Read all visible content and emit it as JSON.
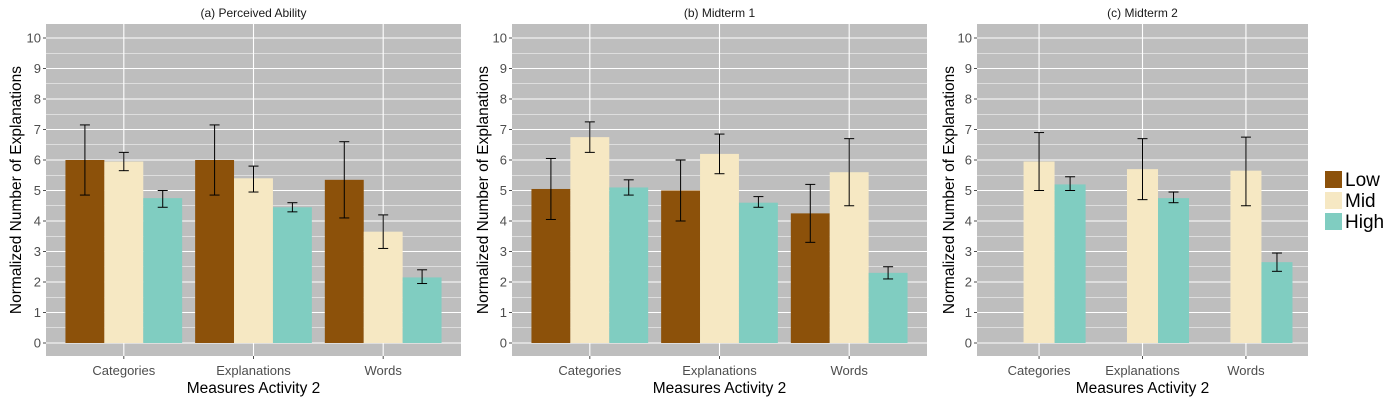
{
  "colors": {
    "Low": "#8c510a",
    "Mid": "#f6e8c3",
    "High": "#80cdc1",
    "panel_bg": "#bebebe",
    "grid": "#ffffff",
    "errorbar": "#000000"
  },
  "legend": {
    "position": "right",
    "items": [
      "Low",
      "Mid",
      "High"
    ]
  },
  "chart_data": [
    {
      "type": "bar",
      "title": "(a) Perceived Ability",
      "xlabel": "Measures Activity 2",
      "ylabel": "Normalized Number of Explanations",
      "ylim": [
        0,
        10
      ],
      "yticks": [
        0,
        1,
        2,
        3,
        4,
        5,
        6,
        7,
        8,
        9,
        10
      ],
      "categories": [
        "Categories",
        "Explanations",
        "Words"
      ],
      "series": [
        {
          "name": "Low",
          "values": [
            6.0,
            6.0,
            5.35
          ],
          "err_low": [
            4.85,
            4.85,
            4.1
          ],
          "err_high": [
            7.15,
            7.15,
            6.6
          ]
        },
        {
          "name": "Mid",
          "values": [
            5.95,
            5.4,
            3.65
          ],
          "err_low": [
            5.65,
            4.95,
            3.1
          ],
          "err_high": [
            6.25,
            5.8,
            4.2
          ]
        },
        {
          "name": "High",
          "values": [
            4.75,
            4.45,
            2.15
          ],
          "err_low": [
            4.45,
            4.3,
            1.95
          ],
          "err_high": [
            5.0,
            4.6,
            2.4
          ]
        }
      ]
    },
    {
      "type": "bar",
      "title": "(b) Midterm 1",
      "xlabel": "Measures Activity 2",
      "ylabel": "Normalized Number of Explanations",
      "ylim": [
        0,
        10
      ],
      "yticks": [
        0,
        1,
        2,
        3,
        4,
        5,
        6,
        7,
        8,
        9,
        10
      ],
      "categories": [
        "Categories",
        "Explanations",
        "Words"
      ],
      "series": [
        {
          "name": "Low",
          "values": [
            5.05,
            5.0,
            4.25
          ],
          "err_low": [
            4.05,
            4.0,
            3.3
          ],
          "err_high": [
            6.05,
            6.0,
            5.2
          ]
        },
        {
          "name": "Mid",
          "values": [
            6.75,
            6.2,
            5.6
          ],
          "err_low": [
            6.25,
            5.55,
            4.5
          ],
          "err_high": [
            7.25,
            6.85,
            6.7
          ]
        },
        {
          "name": "High",
          "values": [
            5.1,
            4.6,
            2.3
          ],
          "err_low": [
            4.85,
            4.45,
            2.1
          ],
          "err_high": [
            5.35,
            4.8,
            2.5
          ]
        }
      ]
    },
    {
      "type": "bar",
      "title": "(c) Midterm 2",
      "xlabel": "Measures Activity 2",
      "ylabel": "Normalized Number of Explanations",
      "ylim": [
        0,
        10
      ],
      "yticks": [
        0,
        1,
        2,
        3,
        4,
        5,
        6,
        7,
        8,
        9,
        10
      ],
      "categories": [
        "Categories",
        "Explanations",
        "Words"
      ],
      "series": [
        {
          "name": "Low",
          "values": [
            null,
            null,
            null
          ]
        },
        {
          "name": "Mid",
          "values": [
            5.95,
            5.7,
            5.65
          ],
          "err_low": [
            5.0,
            4.7,
            4.5
          ],
          "err_high": [
            6.9,
            6.7,
            6.75
          ]
        },
        {
          "name": "High",
          "values": [
            5.2,
            4.75,
            2.65
          ],
          "err_low": [
            5.0,
            4.6,
            2.35
          ],
          "err_high": [
            5.45,
            4.95,
            2.95
          ]
        }
      ]
    }
  ]
}
